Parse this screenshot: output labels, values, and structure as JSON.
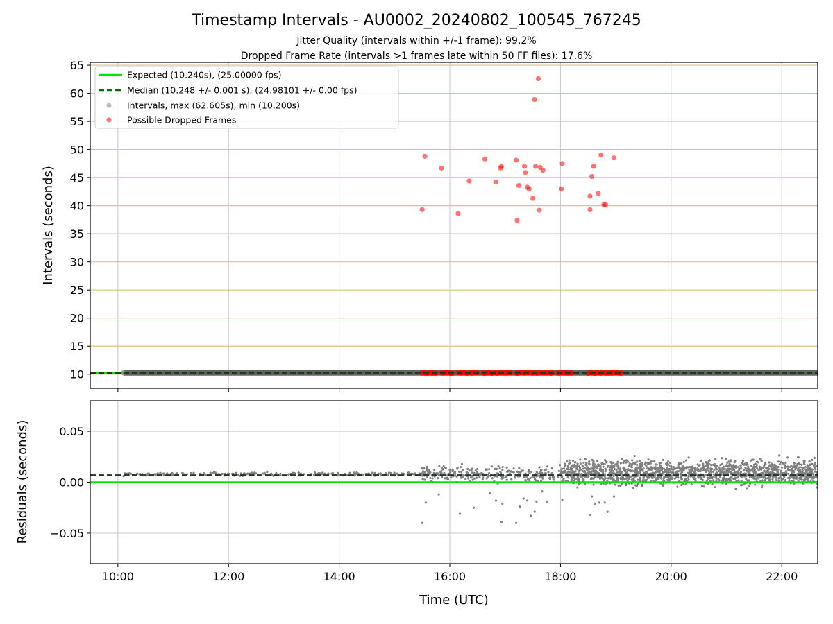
{
  "figure": {
    "title": "Timestamp Intervals - AU0002_20240802_100545_767245",
    "subtitle_1": "Jitter Quality (intervals within +/-1 frame): 99.2%",
    "subtitle_2": "Dropped Frame Rate (intervals >1 frames late within 50 FF files): 17.6%"
  },
  "colors": {
    "expected": "#00e600",
    "median": "#007000",
    "intervals": "#808080",
    "dropped": "#ff0000",
    "hgrid_top": "#d4c58a",
    "grid": "#c8c8c8"
  },
  "chart_data": [
    {
      "type": "scatter",
      "ylabel": "Intervals (seconds)",
      "xlim_hours": [
        9.5,
        22.65
      ],
      "ylim": [
        7.5,
        65.5
      ],
      "yticks": [
        10,
        15,
        20,
        25,
        30,
        35,
        40,
        45,
        50,
        55,
        60,
        65
      ],
      "xticks_hours": [
        10,
        12,
        14,
        16,
        18,
        20,
        22
      ],
      "grid": true,
      "legend_placement": "upper-left",
      "legend": [
        "Expected (10.240s), (25.00000 fps)",
        "Median (10.248 +/- 0.001 s), (24.98101 +/- 0.00 fps)",
        "Intervals, max (62.605s), min (10.200s)",
        "Possible Dropped Frames"
      ],
      "expected_value": 10.24,
      "median_value": 10.248,
      "intervals_span_hours": [
        10.1,
        22.65
      ],
      "intervals_value": 10.248,
      "dropped_near_baseline_hours": [
        [
          15.5,
          15.75
        ],
        [
          15.85,
          16.05
        ],
        [
          16.15,
          16.5
        ],
        [
          16.6,
          17.1
        ],
        [
          17.2,
          17.85
        ],
        [
          17.95,
          18.2
        ],
        [
          18.5,
          19.1
        ]
      ],
      "dropped_frames": [
        {
          "x": "15:30",
          "y": 39.3
        },
        {
          "x": "15:33",
          "y": 48.8
        },
        {
          "x": "15:51",
          "y": 46.7
        },
        {
          "x": "16:09",
          "y": 38.6
        },
        {
          "x": "16:21",
          "y": 44.4
        },
        {
          "x": "16:38",
          "y": 48.3
        },
        {
          "x": "16:50",
          "y": 44.2
        },
        {
          "x": "16:55",
          "y": 46.7
        },
        {
          "x": "16:56",
          "y": 47.0
        },
        {
          "x": "17:12",
          "y": 48.1
        },
        {
          "x": "17:13",
          "y": 37.4
        },
        {
          "x": "17:15",
          "y": 43.6
        },
        {
          "x": "17:21",
          "y": 47.0
        },
        {
          "x": "17:22",
          "y": 45.9
        },
        {
          "x": "17:24",
          "y": 43.3
        },
        {
          "x": "17:26",
          "y": 43.0
        },
        {
          "x": "17:30",
          "y": 41.3
        },
        {
          "x": "17:32",
          "y": 58.9
        },
        {
          "x": "17:33",
          "y": 47.0
        },
        {
          "x": "17:36",
          "y": 62.6
        },
        {
          "x": "17:37",
          "y": 39.2
        },
        {
          "x": "17:38",
          "y": 46.8
        },
        {
          "x": "17:41",
          "y": 46.3
        },
        {
          "x": "18:01",
          "y": 43.0
        },
        {
          "x": "18:02",
          "y": 47.5
        },
        {
          "x": "18:32",
          "y": 41.7
        },
        {
          "x": "18:32",
          "y": 39.3
        },
        {
          "x": "18:34",
          "y": 45.2
        },
        {
          "x": "18:36",
          "y": 47.0
        },
        {
          "x": "18:41",
          "y": 42.2
        },
        {
          "x": "18:44",
          "y": 49.0
        },
        {
          "x": "18:47",
          "y": 40.2
        },
        {
          "x": "18:49",
          "y": 40.2
        },
        {
          "x": "18:58",
          "y": 48.5
        }
      ]
    },
    {
      "type": "scatter",
      "xlabel": "Time (UTC)",
      "ylabel": "Residuals (seconds)",
      "xlim_hours": [
        9.5,
        22.65
      ],
      "ylim": [
        -0.08,
        0.08
      ],
      "yticks": [
        -0.05,
        0.0,
        0.05
      ],
      "ytick_labels": [
        "−0.05",
        "0.00",
        "0.05"
      ],
      "xtick_labels": [
        "10:00",
        "12:00",
        "14:00",
        "16:00",
        "18:00",
        "20:00",
        "22:00"
      ],
      "grid": true,
      "expected_residual": 0.0,
      "median_residual": 0.007,
      "residual_band_early": {
        "x_hours": [
          10.1,
          15.5
        ],
        "y": 0.008
      },
      "residual_band_mid": {
        "x_hours": [
          15.5,
          18.0
        ],
        "y_range": [
          0.002,
          0.014
        ]
      },
      "residual_band_late": {
        "x_hours": [
          18.0,
          22.65
        ],
        "y_range": [
          0.0,
          0.019
        ]
      },
      "residual_outliers": [
        {
          "x": "15:30",
          "y": -0.04
        },
        {
          "x": "15:34",
          "y": -0.02
        },
        {
          "x": "15:48",
          "y": -0.012
        },
        {
          "x": "16:11",
          "y": -0.031
        },
        {
          "x": "16:26",
          "y": -0.025
        },
        {
          "x": "16:44",
          "y": -0.011
        },
        {
          "x": "16:50",
          "y": -0.018
        },
        {
          "x": "16:56",
          "y": -0.039
        },
        {
          "x": "16:57",
          "y": -0.021
        },
        {
          "x": "17:12",
          "y": -0.04
        },
        {
          "x": "17:16",
          "y": -0.024
        },
        {
          "x": "17:20",
          "y": -0.016
        },
        {
          "x": "17:24",
          "y": -0.018
        },
        {
          "x": "17:28",
          "y": -0.033
        },
        {
          "x": "17:32",
          "y": -0.029
        },
        {
          "x": "17:34",
          "y": -0.019
        },
        {
          "x": "17:40",
          "y": -0.009
        },
        {
          "x": "17:45",
          "y": -0.019
        },
        {
          "x": "18:02",
          "y": -0.017
        },
        {
          "x": "18:32",
          "y": -0.032
        },
        {
          "x": "18:34",
          "y": -0.014
        },
        {
          "x": "18:37",
          "y": -0.021
        },
        {
          "x": "18:42",
          "y": -0.02
        },
        {
          "x": "18:48",
          "y": -0.02
        },
        {
          "x": "18:51",
          "y": -0.029
        },
        {
          "x": "18:58",
          "y": -0.014
        }
      ]
    }
  ]
}
